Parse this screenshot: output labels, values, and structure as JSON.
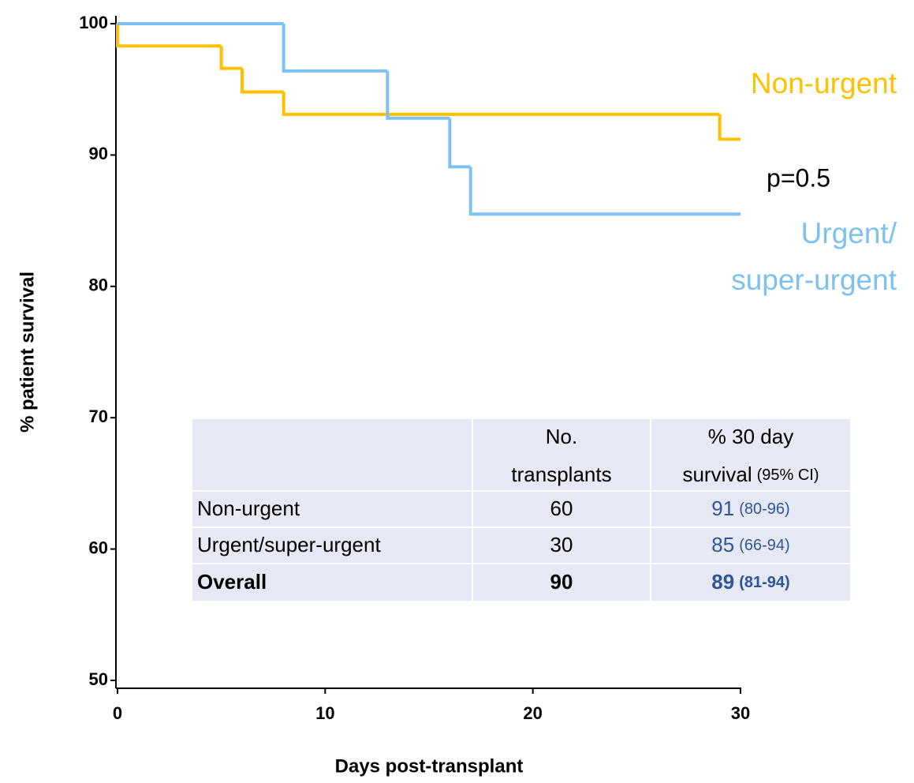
{
  "chart_data": {
    "type": "step",
    "x_label": "Days post-transplant",
    "y_label": "% patient survival",
    "xlim": [
      0,
      30
    ],
    "xticks": [
      0,
      10,
      20,
      30
    ],
    "ylim": [
      50,
      100
    ],
    "yticks": [
      50,
      60,
      70,
      80,
      90,
      100
    ],
    "series": [
      {
        "label": [
          "Non-urgent"
        ],
        "color": "#FFC000",
        "x": [
          0,
          0,
          5,
          6,
          8,
          29,
          30
        ],
        "values": [
          100,
          98.3,
          96.6,
          94.8,
          93.1,
          91.2,
          91.2
        ]
      },
      {
        "label": [
          "Urgent/",
          "super-urgent"
        ],
        "color": "#7DC1F2",
        "x": [
          0,
          8,
          13,
          16,
          17,
          30
        ],
        "values": [
          100,
          96.4,
          92.8,
          89.1,
          85.5,
          85.5
        ]
      }
    ],
    "annotations": [
      {
        "text": "p=0.5"
      }
    ],
    "table": {
      "header": [
        {
          "lines": [
            "No.",
            "transplants"
          ]
        },
        {
          "lines": [
            "% 30 day",
            "survival"
          ],
          "note": "(95% CI)"
        }
      ],
      "rows": [
        [
          "Non-urgent",
          60,
          91,
          "(80-96)"
        ],
        [
          "Urgent/super-urgent",
          30,
          85,
          "(66-94)"
        ],
        [
          "Overall",
          90,
          89,
          "(81-94)"
        ]
      ],
      "bold_last_row": true,
      "value_color": "#2F5597",
      "background": "#E6E9F3"
    }
  }
}
